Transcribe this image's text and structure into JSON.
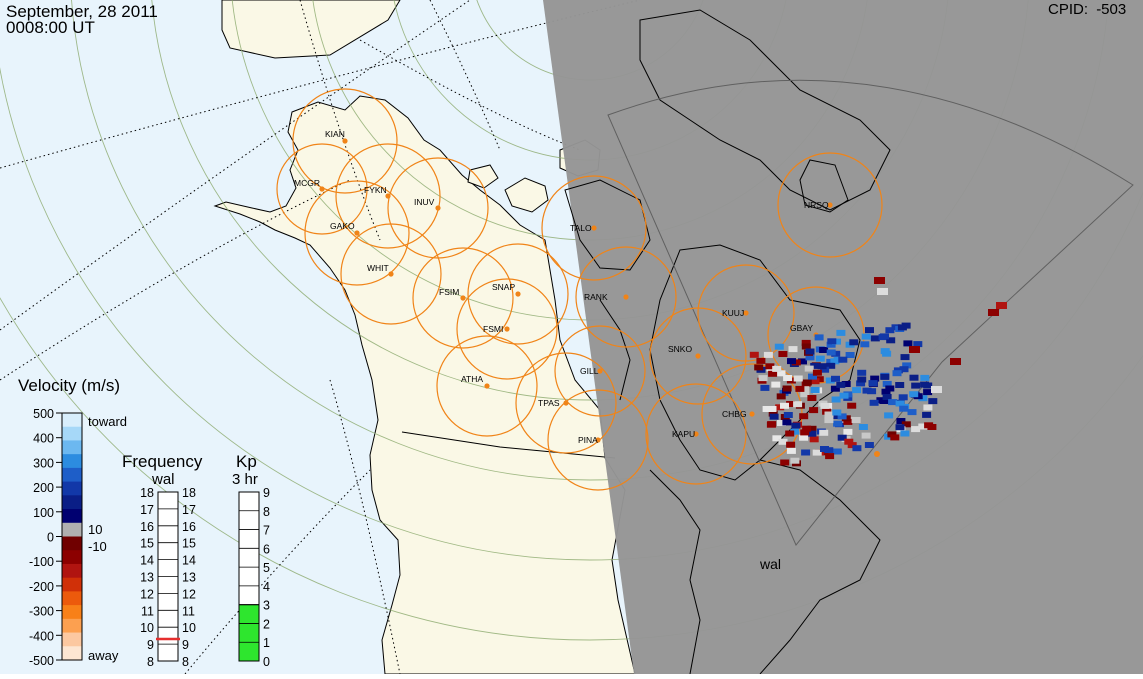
{
  "header": {
    "date": "September, 28 2011",
    "time": "0008:00 UT",
    "cpid_label": "CPID:",
    "cpid_value": "-503"
  },
  "colors": {
    "ocean": "#e8f4fc",
    "land": "#faf8e6",
    "night": "#959595",
    "fov_circle": "#f08418",
    "station_dot": "#f08418",
    "kp_green": "#2ee62e",
    "freq_marker": "#e62e2e"
  },
  "stations": [
    "KIAN",
    "MCGR",
    "FYKN",
    "INUV",
    "GAKO",
    "WHIT",
    "TALO",
    "FSIM",
    "SNAP",
    "FSMI",
    "RANK",
    "NRSQ",
    "KUUJ",
    "GBAY",
    "SNKO",
    "GILL",
    "ATHA",
    "TPAS",
    "CHBG",
    "KAPU",
    "PINA"
  ],
  "fov_label": "wal",
  "velocity_scale": {
    "title": "Velocity (m/s)",
    "ticks": [
      "500",
      "400",
      "300",
      "200",
      "100",
      "0",
      "-100",
      "-200",
      "-300",
      "-400",
      "-500"
    ],
    "toward_label": "toward",
    "away_label": "away",
    "pos_threshold": "10",
    "neg_threshold": "-10",
    "colors": [
      "#d8eefc",
      "#a6d8f8",
      "#6cb8f0",
      "#2c8ce0",
      "#1e5ec8",
      "#1238a8",
      "#0a1e86",
      "#000070",
      "#b0b0b0",
      "#700000",
      "#8c0000",
      "#b01410",
      "#d03008",
      "#ec5a0c",
      "#f88018",
      "#fca050",
      "#fcc8a0",
      "#fde6d2"
    ]
  },
  "frequency_scale": {
    "title": "Frequency",
    "subtitle": "wal",
    "left_ticks": [
      "18",
      "17",
      "16",
      "15",
      "14",
      "13",
      "12",
      "11",
      "10",
      "9",
      "8"
    ],
    "right_ticks": [
      "18",
      "17",
      "16",
      "15",
      "14",
      "13",
      "12",
      "11",
      "10",
      "9",
      "8"
    ],
    "current_mhz": 9.3
  },
  "kp_scale": {
    "title": "Kp",
    "subtitle": "3 hr",
    "ticks": [
      "9",
      "8",
      "7",
      "6",
      "5",
      "4",
      "3",
      "2",
      "1",
      "0"
    ],
    "current": 3
  }
}
